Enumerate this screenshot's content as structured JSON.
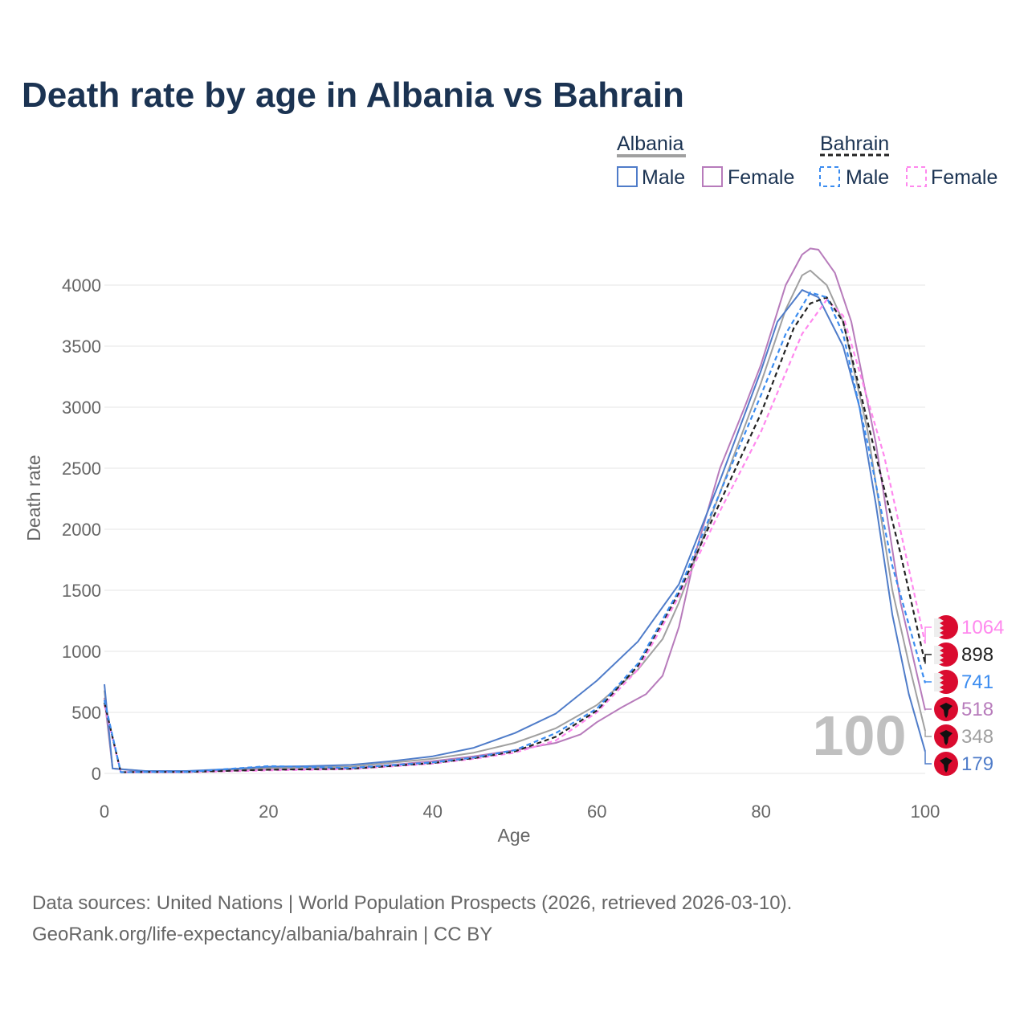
{
  "chart_data": {
    "type": "line",
    "title": "Death rate by age in Albania vs Bahrain",
    "xlabel": "Age",
    "ylabel": "Death rate",
    "xlim": [
      0,
      100
    ],
    "ylim": [
      0,
      4300
    ],
    "xticks": [
      0,
      20,
      40,
      60,
      80,
      100
    ],
    "yticks": [
      0,
      500,
      1000,
      1500,
      2000,
      2500,
      3000,
      3500,
      4000
    ],
    "grid": true,
    "current_age_label": "100",
    "legend": {
      "groups": [
        {
          "country": "Albania",
          "items": [
            "Male",
            "Female"
          ]
        },
        {
          "country": "Bahrain",
          "items": [
            "Male",
            "Female"
          ]
        }
      ],
      "placement": "top-right"
    },
    "series": [
      {
        "name": "Albania Female",
        "color": "#b77bbb",
        "dashed": false,
        "end_label": "518",
        "x": [
          0,
          1,
          5,
          10,
          20,
          30,
          40,
          45,
          50,
          55,
          58,
          60,
          63,
          66,
          68,
          70,
          72,
          75,
          78,
          80,
          83,
          85,
          86,
          87,
          89,
          91,
          94,
          97,
          100
        ],
        "y": [
          620,
          40,
          15,
          15,
          30,
          40,
          100,
          140,
          190,
          250,
          320,
          420,
          540,
          650,
          800,
          1200,
          1800,
          2500,
          3000,
          3350,
          4000,
          4250,
          4300,
          4290,
          4100,
          3700,
          2700,
          1400,
          518
        ]
      },
      {
        "name": "Albania Total",
        "color": "#a0a0a0",
        "dashed": false,
        "end_label": "348",
        "x": [
          0,
          1,
          5,
          10,
          20,
          30,
          40,
          45,
          50,
          55,
          60,
          65,
          68,
          70,
          75,
          80,
          83,
          85,
          86,
          88,
          90,
          93,
          96,
          98,
          100
        ],
        "y": [
          680,
          40,
          18,
          18,
          45,
          55,
          120,
          170,
          250,
          370,
          560,
          850,
          1100,
          1400,
          2300,
          3200,
          3800,
          4080,
          4120,
          4000,
          3700,
          2800,
          1500,
          900,
          348
        ]
      },
      {
        "name": "Albania Male",
        "color": "#4f7cc9",
        "dashed": false,
        "end_label": "179",
        "x": [
          0,
          1,
          5,
          10,
          15,
          20,
          25,
          30,
          35,
          40,
          45,
          50,
          55,
          60,
          65,
          70,
          75,
          80,
          82,
          85,
          87,
          90,
          92,
          94,
          96,
          98,
          100
        ],
        "y": [
          730,
          40,
          20,
          20,
          35,
          55,
          60,
          70,
          100,
          140,
          210,
          330,
          490,
          760,
          1080,
          1550,
          2400,
          3300,
          3700,
          3960,
          3900,
          3500,
          3000,
          2200,
          1300,
          650,
          179
        ]
      },
      {
        "name": "Bahrain Female",
        "color": "#ff88ee",
        "dashed": true,
        "end_label": "1064",
        "x": [
          0,
          2,
          5,
          10,
          20,
          30,
          40,
          45,
          50,
          55,
          60,
          65,
          70,
          75,
          80,
          85,
          88,
          90,
          95,
          100
        ],
        "y": [
          560,
          10,
          10,
          10,
          25,
          35,
          80,
          120,
          170,
          270,
          500,
          850,
          1450,
          2150,
          2800,
          3600,
          3880,
          3750,
          2600,
          1064
        ]
      },
      {
        "name": "Bahrain Total",
        "color": "#222222",
        "dashed": true,
        "end_label": "898",
        "x": [
          0,
          2,
          5,
          10,
          20,
          30,
          40,
          45,
          50,
          55,
          60,
          65,
          70,
          75,
          80,
          84,
          86,
          88,
          90,
          94,
          97,
          100
        ],
        "y": [
          580,
          10,
          12,
          12,
          30,
          38,
          85,
          125,
          180,
          300,
          515,
          880,
          1480,
          2220,
          2950,
          3650,
          3850,
          3900,
          3700,
          2600,
          1800,
          898
        ]
      },
      {
        "name": "Bahrain Male",
        "color": "#3b8cf0",
        "dashed": true,
        "end_label": "741",
        "x": [
          0,
          2,
          5,
          10,
          20,
          30,
          40,
          45,
          50,
          55,
          60,
          65,
          70,
          75,
          80,
          83,
          86,
          88,
          90,
          93,
          96,
          100
        ],
        "y": [
          600,
          10,
          12,
          12,
          60,
          45,
          90,
          130,
          190,
          330,
          530,
          900,
          1500,
          2300,
          3100,
          3600,
          3940,
          3900,
          3600,
          2700,
          1700,
          741
        ]
      }
    ]
  },
  "footer": {
    "line1": "Data sources: United Nations | World Population Prospects (2026, retrieved 2026-03-10).",
    "line2": "GeoRank.org/life-expectancy/albania/bahrain | CC BY"
  }
}
